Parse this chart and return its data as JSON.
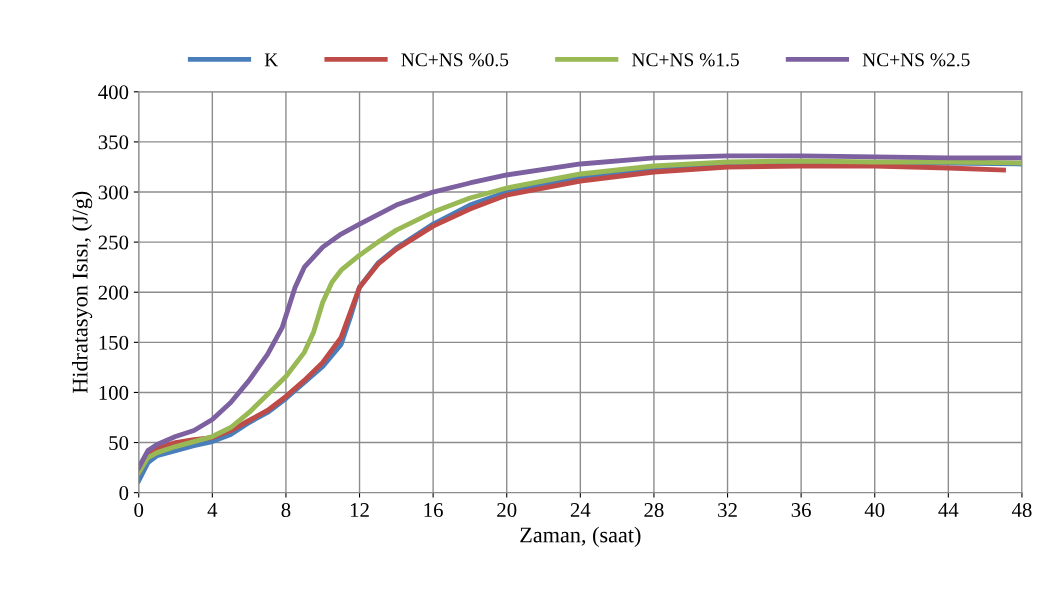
{
  "chart_data": {
    "type": "line",
    "xlabel": "Zaman, (saat)",
    "ylabel": "Hidratasyon Isısı, (J/g)",
    "xlim": [
      0,
      48
    ],
    "xticks": [
      0,
      4,
      8,
      12,
      16,
      20,
      24,
      28,
      32,
      36,
      40,
      44,
      48
    ],
    "ylim": [
      0,
      400
    ],
    "yticks": [
      0,
      50,
      100,
      150,
      200,
      250,
      300,
      350,
      400
    ],
    "grid": true,
    "legend": "top",
    "marker": "none",
    "line_style": "solid",
    "series": [
      {
        "name": "K",
        "color": "#4a7ebb",
        "x": [
          0,
          0.5,
          1,
          2,
          3,
          4,
          5,
          6,
          7,
          8,
          9,
          10,
          11,
          11.5,
          12,
          13,
          14,
          16,
          18,
          20,
          24,
          28,
          32,
          36,
          40,
          44,
          48
        ],
        "values": [
          12,
          30,
          37,
          42,
          47,
          51,
          58,
          70,
          80,
          94,
          110,
          126,
          148,
          175,
          205,
          229,
          244,
          268,
          287,
          300,
          314,
          322,
          327,
          329,
          329,
          329,
          328
        ]
      },
      {
        "name": "NC+NS %0.5",
        "color": "#be4b48",
        "x": [
          0,
          0.5,
          1,
          2,
          3,
          4,
          5,
          6,
          7,
          8,
          9,
          10,
          11,
          11.5,
          12,
          13,
          14,
          16,
          18,
          20,
          24,
          28,
          32,
          36,
          40,
          44,
          47
        ],
        "values": [
          20,
          38,
          44,
          50,
          53,
          55,
          62,
          72,
          82,
          96,
          112,
          130,
          155,
          180,
          205,
          228,
          243,
          266,
          283,
          297,
          311,
          320,
          325,
          326,
          326,
          324,
          322
        ]
      },
      {
        "name": "NC+NS %1.5",
        "color": "#98b954",
        "x": [
          0,
          0.5,
          1,
          2,
          3,
          4,
          5,
          6,
          7,
          8,
          9,
          9.5,
          10,
          10.5,
          11,
          12,
          13,
          14,
          16,
          18,
          20,
          24,
          28,
          32,
          36,
          40,
          44,
          48
        ],
        "values": [
          20,
          35,
          40,
          46,
          51,
          56,
          65,
          80,
          98,
          116,
          140,
          160,
          190,
          210,
          222,
          237,
          250,
          262,
          280,
          294,
          304,
          318,
          326,
          330,
          331,
          330,
          330,
          329
        ]
      },
      {
        "name": "NC+NS %2.5",
        "color": "#7d60a0",
        "x": [
          0,
          0.5,
          1,
          2,
          3,
          4,
          5,
          6,
          7,
          7.8,
          8.5,
          9,
          10,
          11,
          12,
          14,
          16,
          18,
          20,
          24,
          28,
          32,
          36,
          40,
          44,
          48
        ],
        "values": [
          25,
          42,
          48,
          56,
          62,
          73,
          90,
          112,
          138,
          165,
          205,
          225,
          245,
          258,
          268,
          287,
          300,
          309,
          317,
          328,
          334,
          336,
          336,
          335,
          334,
          334
        ]
      }
    ]
  }
}
